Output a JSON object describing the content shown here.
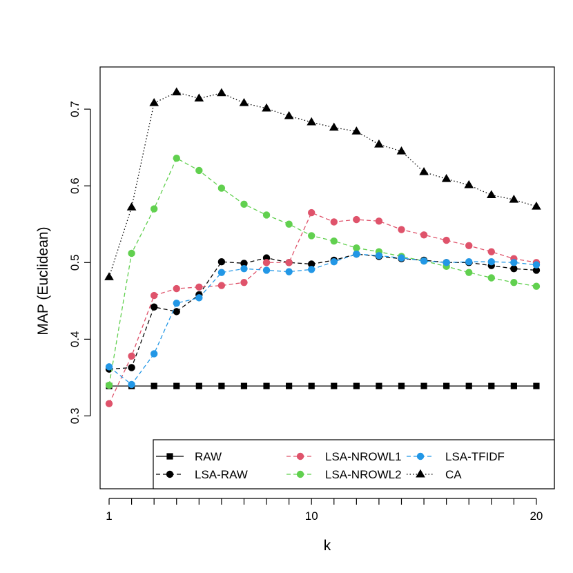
{
  "chart_data": {
    "type": "line",
    "xlabel": "k",
    "ylabel": "MAP (Euclidean)",
    "xlim": [
      0.6,
      20.8
    ],
    "ylim": [
      0.205,
      0.755
    ],
    "x": [
      1,
      2,
      3,
      4,
      5,
      6,
      7,
      8,
      9,
      10,
      11,
      12,
      13,
      14,
      15,
      16,
      17,
      18,
      19,
      20
    ],
    "x_tick_labels": [
      {
        "value": 1,
        "label": "1"
      },
      {
        "value": 10,
        "label": "10"
      },
      {
        "value": 20,
        "label": "20"
      }
    ],
    "y_tick_labels": [
      {
        "value": 0.3,
        "label": "0.3"
      },
      {
        "value": 0.4,
        "label": "0.4"
      },
      {
        "value": 0.5,
        "label": "0.5"
      },
      {
        "value": 0.6,
        "label": "0.6"
      },
      {
        "value": 0.7,
        "label": "0.7"
      }
    ],
    "legend_position": "bottom",
    "series": [
      {
        "name": "RAW",
        "color": "#000000",
        "marker": "square",
        "line": "solid",
        "values": [
          0.339,
          0.339,
          0.339,
          0.339,
          0.339,
          0.339,
          0.339,
          0.339,
          0.339,
          0.339,
          0.339,
          0.339,
          0.339,
          0.339,
          0.339,
          0.339,
          0.339,
          0.339,
          0.339,
          0.339
        ]
      },
      {
        "name": "LSA-RAW",
        "color": "#000000",
        "marker": "circle",
        "line": "dashed",
        "values": [
          0.361,
          0.363,
          0.442,
          0.436,
          0.458,
          0.501,
          0.499,
          0.506,
          0.5,
          0.498,
          0.503,
          0.511,
          0.508,
          0.505,
          0.503,
          0.5,
          0.5,
          0.496,
          0.492,
          0.49
        ]
      },
      {
        "name": "LSA-NROWL1",
        "color": "#DF536B",
        "marker": "circle",
        "line": "dashed",
        "values": [
          0.316,
          0.378,
          0.457,
          0.466,
          0.468,
          0.47,
          0.474,
          0.5,
          0.5,
          0.565,
          0.553,
          0.556,
          0.554,
          0.543,
          0.536,
          0.529,
          0.522,
          0.514,
          0.505,
          0.5
        ]
      },
      {
        "name": "LSA-NROWL2",
        "color": "#61D04F",
        "marker": "circle",
        "line": "dashed",
        "values": [
          0.34,
          0.512,
          0.57,
          0.636,
          0.62,
          0.597,
          0.576,
          0.562,
          0.55,
          0.535,
          0.528,
          0.519,
          0.514,
          0.508,
          0.502,
          0.495,
          0.487,
          0.48,
          0.474,
          0.469
        ]
      },
      {
        "name": "LSA-TFIDF",
        "color": "#2297E6",
        "marker": "circle",
        "line": "dashed",
        "values": [
          0.364,
          0.341,
          0.381,
          0.447,
          0.454,
          0.487,
          0.492,
          0.49,
          0.488,
          0.491,
          0.501,
          0.511,
          0.509,
          0.506,
          0.502,
          0.5,
          0.501,
          0.501,
          0.5,
          0.497
        ]
      },
      {
        "name": "CA",
        "color": "#000000",
        "marker": "triangle",
        "line": "dotted",
        "values": [
          0.481,
          0.572,
          0.708,
          0.722,
          0.714,
          0.721,
          0.708,
          0.701,
          0.691,
          0.683,
          0.676,
          0.671,
          0.654,
          0.645,
          0.618,
          0.609,
          0.601,
          0.588,
          0.582,
          0.573
        ]
      }
    ]
  }
}
